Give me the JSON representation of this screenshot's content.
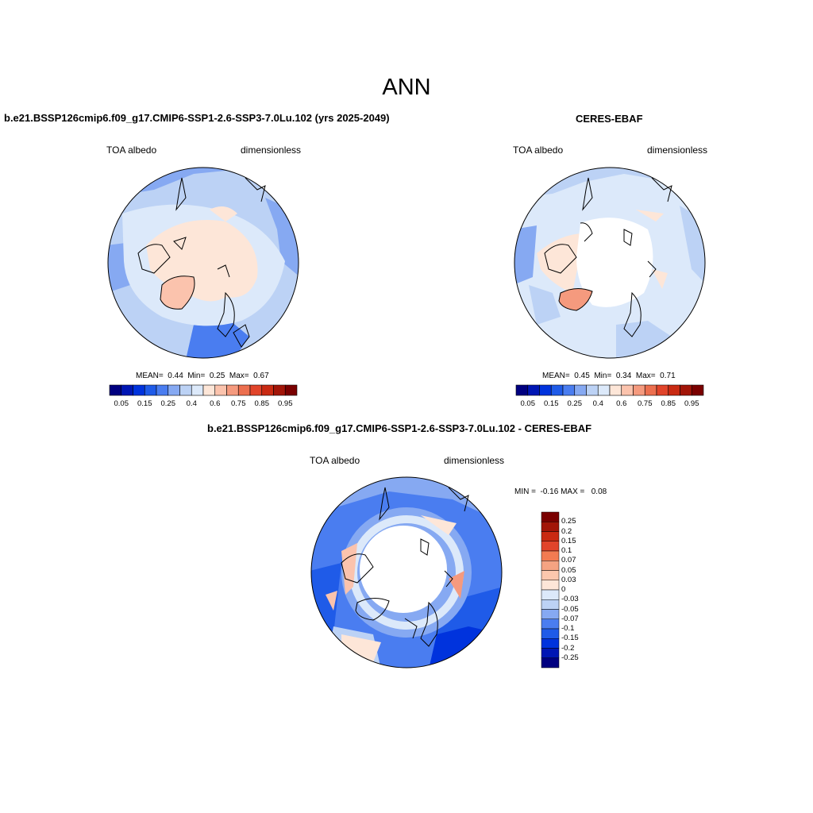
{
  "title": "ANN",
  "panels": [
    {
      "title": "b.e21.BSSP126cmip6.f09_g17.CMIP6-SSP1-2.6-SSP3-7.0Lu.102 (yrs 2025-2049)",
      "variable": "TOA albedo",
      "units": "dimensionless",
      "stats": {
        "mean_label": "MEAN=",
        "mean": "0.44",
        "min_label": "Min=",
        "min": "0.25",
        "max_label": "Max=",
        "max": "0.67"
      }
    },
    {
      "title": "CERES-EBAF",
      "variable": "TOA albedo",
      "units": "dimensionless",
      "stats": {
        "mean_label": "MEAN=",
        "mean": "0.45",
        "min_label": "Min=",
        "min": "0.34",
        "max_label": "Max=",
        "max": "0.71"
      }
    },
    {
      "title": "b.e21.BSSP126cmip6.f09_g17.CMIP6-SSP1-2.6-SSP3-7.0Lu.102 - CERES-EBAF",
      "variable": "TOA albedo",
      "units": "dimensionless",
      "stats": {
        "min_label": "MIN =",
        "min": "-0.16",
        "max_label": "MAX =",
        "max": "0.08"
      }
    }
  ],
  "colorbar_abs": {
    "colors": [
      "#000080",
      "#0016b4",
      "#0033dd",
      "#1f5be8",
      "#4a7df0",
      "#86a9f2",
      "#bcd2f5",
      "#dce9fa",
      "#fde6d8",
      "#fbc3ad",
      "#f59a7e",
      "#ec6f4f",
      "#e1442a",
      "#c92a12",
      "#a21508",
      "#7a0000"
    ],
    "labels": [
      "0.05",
      "0.15",
      "0.25",
      "0.4",
      "0.6",
      "0.75",
      "0.85",
      "0.95"
    ]
  },
  "colorbar_diff": {
    "colors": [
      "#7a0000",
      "#a21508",
      "#c92a12",
      "#e1442a",
      "#f27b52",
      "#f5a382",
      "#fbc7ad",
      "#fde6d8",
      "#dce9fa",
      "#bcd2f5",
      "#86a9f2",
      "#4a7df0",
      "#1f5be8",
      "#0033dd",
      "#0016b4",
      "#000080"
    ],
    "labels": [
      "0.25",
      "0.2",
      "0.15",
      "0.1",
      "0.07",
      "0.05",
      "0.03",
      "0",
      "-0.03",
      "-0.05",
      "-0.07",
      "-0.1",
      "-0.15",
      "-0.2",
      "-0.25"
    ]
  },
  "map_colors": {
    "ocean_light": "#dce9fa",
    "ocean_mid": "#bcd2f5",
    "ocean_dark": "#86a9f2",
    "ocean_deeper": "#4a7df0",
    "land_light": "#fde6d8",
    "land_mid": "#fbc3ad",
    "diff_blue": "#1f5be8",
    "diff_dark": "#0033dd"
  }
}
